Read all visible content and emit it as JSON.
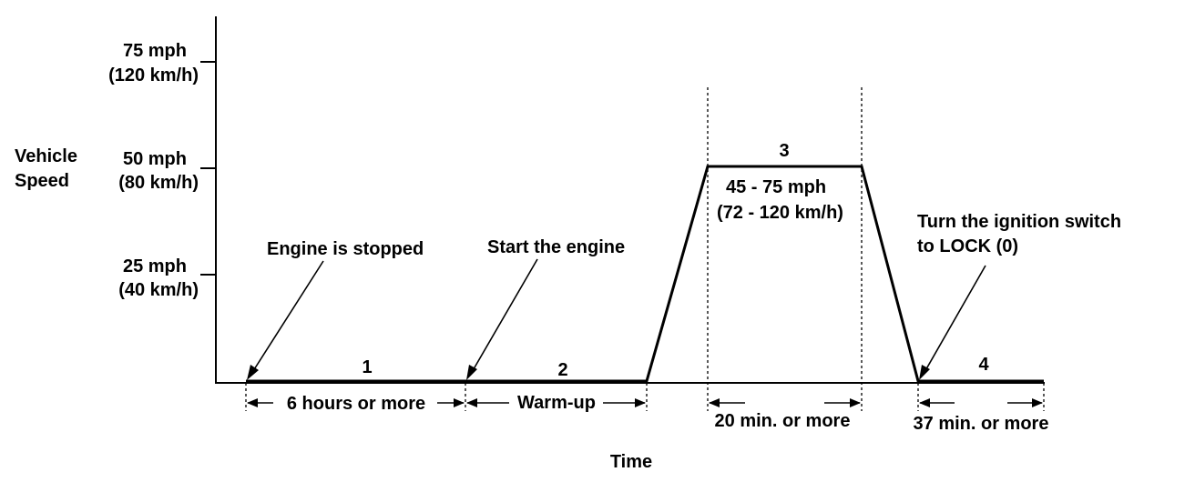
{
  "axes": {
    "y_title": [
      "Vehicle",
      "Speed"
    ],
    "x_title": "Time",
    "y_ticks": [
      {
        "mph": "75 mph",
        "kmh": "(120 km/h)"
      },
      {
        "mph": "50 mph",
        "kmh": "(80 km/h)"
      },
      {
        "mph": "25 mph",
        "kmh": "(40 km/h)"
      }
    ]
  },
  "phases": {
    "p1": {
      "number": "1",
      "duration": "6 hours or more"
    },
    "p2": {
      "number": "2",
      "duration": "Warm-up"
    },
    "p3": {
      "number": "3",
      "speed_mph": "45 - 75 mph",
      "speed_kmh": "(72 - 120 km/h)",
      "duration": "20 min. or more"
    },
    "p4": {
      "number": "4",
      "duration": "37 min. or more"
    }
  },
  "callouts": {
    "engine_stopped": "Engine is stopped",
    "start_engine": "Start the engine",
    "ignition_line1": "Turn the ignition switch",
    "ignition_line2": "to LOCK (0)"
  }
}
